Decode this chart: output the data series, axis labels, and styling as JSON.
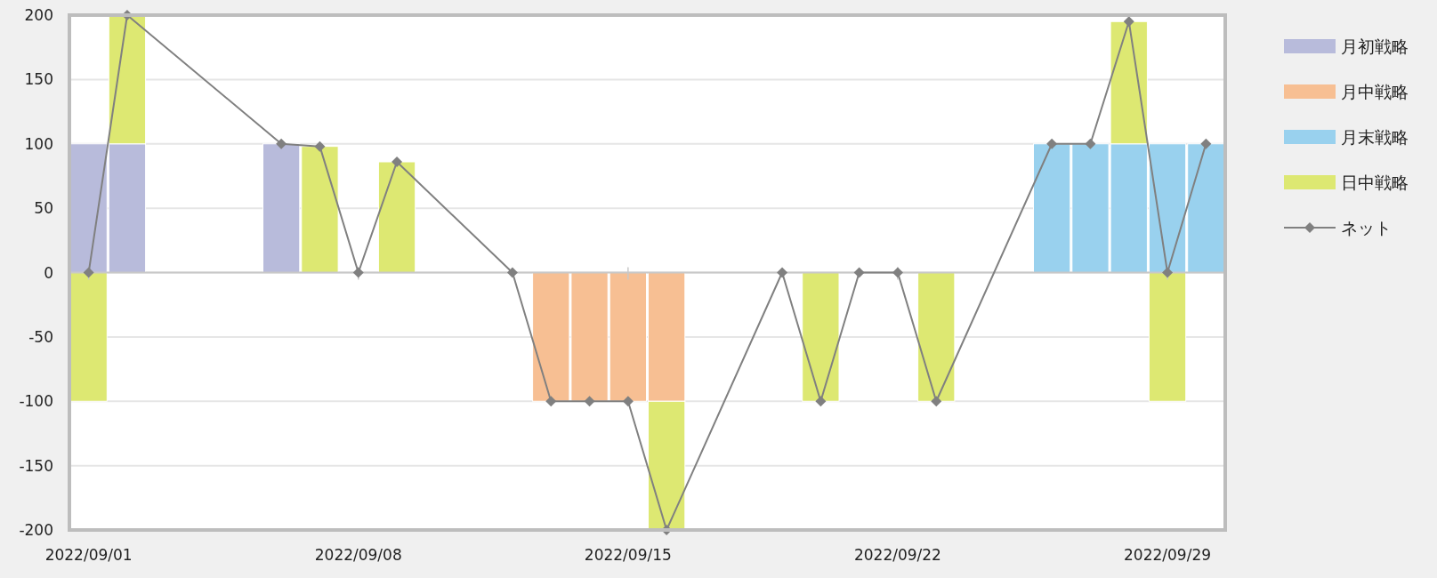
{
  "chart_data": {
    "type": "bar",
    "stacked": true,
    "x": [
      "2022-09-01",
      "2022-09-02",
      "2022-09-06",
      "2022-09-07",
      "2022-09-08",
      "2022-09-09",
      "2022-09-12",
      "2022-09-13",
      "2022-09-14",
      "2022-09-15",
      "2022-09-16",
      "2022-09-19",
      "2022-09-20",
      "2022-09-21",
      "2022-09-22",
      "2022-09-23",
      "2022-09-26",
      "2022-09-27",
      "2022-09-28",
      "2022-09-29",
      "2022-09-30"
    ],
    "series": [
      {
        "name": "月初戦略",
        "color": "#b8bbdb",
        "values": [
          100,
          100,
          100,
          null,
          null,
          null,
          null,
          null,
          null,
          null,
          null,
          null,
          null,
          null,
          null,
          null,
          null,
          null,
          null,
          null,
          null
        ]
      },
      {
        "name": "月中戦略",
        "color": "#f7bf93",
        "values": [
          null,
          null,
          null,
          null,
          null,
          null,
          null,
          -100,
          -100,
          -100,
          -100,
          null,
          null,
          null,
          null,
          null,
          null,
          null,
          null,
          null,
          null
        ]
      },
      {
        "name": "月末戦略",
        "color": "#99d1ee",
        "values": [
          null,
          null,
          null,
          null,
          null,
          null,
          null,
          null,
          null,
          null,
          null,
          null,
          null,
          null,
          null,
          null,
          100,
          100,
          100,
          100,
          100
        ]
      },
      {
        "name": "日中戦略",
        "color": "#dde872",
        "values": [
          -100,
          100,
          null,
          98,
          null,
          86,
          null,
          null,
          null,
          null,
          -100,
          null,
          -100,
          null,
          null,
          -100,
          null,
          null,
          95,
          -100,
          null
        ]
      },
      {
        "name": "ネット",
        "type": "line",
        "color": "#808080",
        "marker": "diamond",
        "values": [
          0,
          200,
          100,
          98,
          0,
          86,
          0,
          -100,
          -100,
          -100,
          -200,
          0,
          -100,
          0,
          0,
          -100,
          100,
          100,
          195,
          0,
          100
        ]
      }
    ],
    "xlim": [
      "2022-08-31T12:00",
      "2022-09-30T12:00"
    ],
    "xticks": [
      {
        "value": "2022-09-01",
        "label": "2022/09/01"
      },
      {
        "value": "2022-09-08",
        "label": "2022/09/08"
      },
      {
        "value": "2022-09-15",
        "label": "2022/09/15"
      },
      {
        "value": "2022-09-22",
        "label": "2022/09/22"
      },
      {
        "value": "2022-09-29",
        "label": "2022/09/29"
      }
    ],
    "ylim": [
      -200,
      200
    ],
    "yticks": [
      -200,
      -150,
      -100,
      -50,
      0,
      50,
      100,
      150,
      200
    ],
    "grid": "y",
    "legend": "right"
  }
}
